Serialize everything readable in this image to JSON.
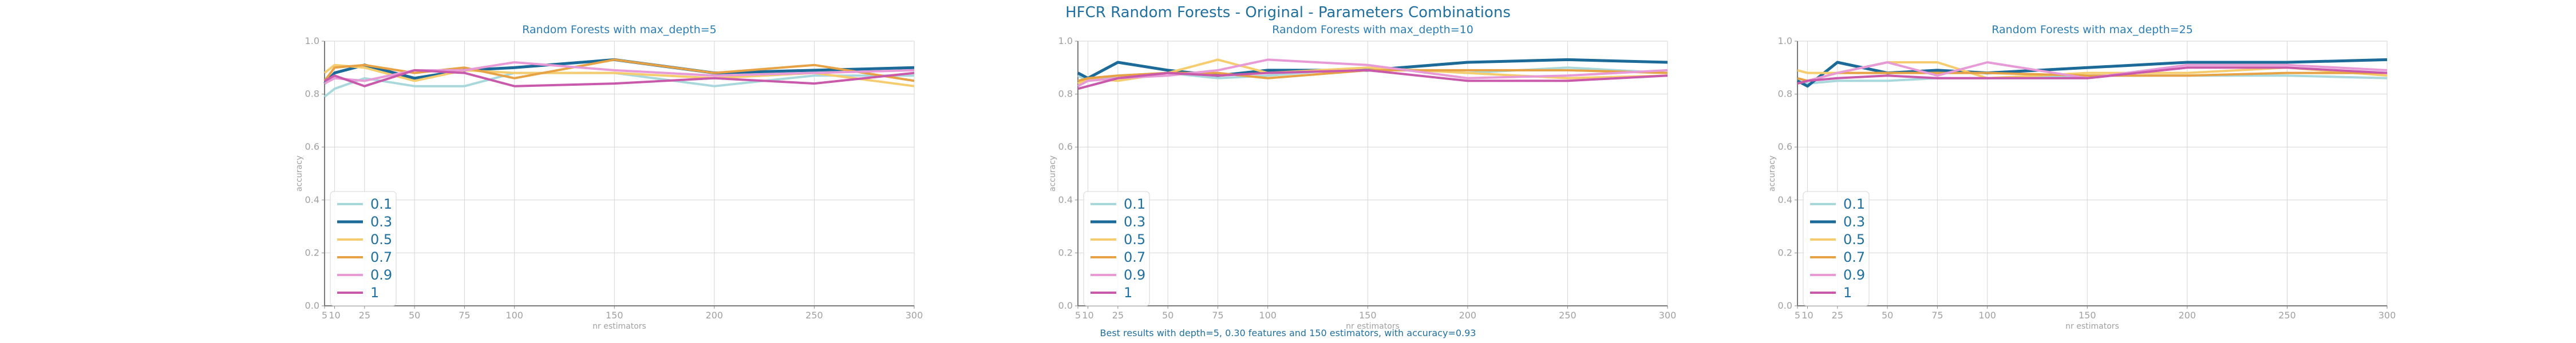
{
  "figure": {
    "title": "HFCR Random Forests - Original - Parameters Combinations",
    "footer": "Best results with depth=5, 0.30 features and 150 estimators, with accuracy=0.93"
  },
  "colors": {
    "0.1": "#a8d8dc",
    "0.3": "#1b6a98",
    "0.5": "#f5cc6e",
    "0.7": "#e6a245",
    "0.9": "#e79ad6",
    "1": "#c95aab"
  },
  "chart_data": [
    {
      "type": "line",
      "title": "Random Forests with max_depth=5",
      "xlabel": "nr estimators",
      "ylabel": "accuracy",
      "x": [
        5,
        10,
        25,
        50,
        75,
        100,
        150,
        200,
        250,
        300
      ],
      "xticks": [
        "5",
        "10",
        "25",
        "50",
        "75",
        "100",
        "150",
        "200",
        "250",
        "300"
      ],
      "yticks": [
        "0.0",
        "0.2",
        "0.4",
        "0.6",
        "0.8",
        "1.0"
      ],
      "ylim": [
        0,
        1
      ],
      "xlim": [
        5,
        300
      ],
      "grid": true,
      "legend": "lower-left",
      "series": [
        {
          "name": "0.1",
          "values": [
            0.79,
            0.82,
            0.86,
            0.83,
            0.83,
            0.88,
            0.88,
            0.83,
            0.87,
            0.87
          ]
        },
        {
          "name": "0.3",
          "values": [
            0.84,
            0.88,
            0.91,
            0.86,
            0.89,
            0.9,
            0.93,
            0.88,
            0.89,
            0.9
          ]
        },
        {
          "name": "0.5",
          "values": [
            0.88,
            0.91,
            0.9,
            0.85,
            0.89,
            0.88,
            0.88,
            0.86,
            0.88,
            0.83
          ]
        },
        {
          "name": "0.7",
          "values": [
            0.85,
            0.9,
            0.91,
            0.88,
            0.9,
            0.86,
            0.93,
            0.88,
            0.91,
            0.85
          ]
        },
        {
          "name": "0.9",
          "values": [
            0.84,
            0.86,
            0.85,
            0.89,
            0.89,
            0.92,
            0.89,
            0.87,
            0.88,
            0.89
          ]
        },
        {
          "name": "1",
          "values": [
            0.85,
            0.87,
            0.83,
            0.89,
            0.88,
            0.83,
            0.84,
            0.86,
            0.84,
            0.88
          ]
        }
      ]
    },
    {
      "type": "line",
      "title": "Random Forests with max_depth=10",
      "xlabel": "nr estimators",
      "ylabel": "accuracy",
      "x": [
        5,
        10,
        25,
        50,
        75,
        100,
        150,
        200,
        250,
        300
      ],
      "xticks": [
        "5",
        "10",
        "25",
        "50",
        "75",
        "100",
        "150",
        "200",
        "250",
        "300"
      ],
      "yticks": [
        "0.0",
        "0.2",
        "0.4",
        "0.6",
        "0.8",
        "1.0"
      ],
      "ylim": [
        0,
        1
      ],
      "xlim": [
        5,
        300
      ],
      "grid": true,
      "legend": "lower-left",
      "series": [
        {
          "name": "0.1",
          "values": [
            0.87,
            0.85,
            0.87,
            0.88,
            0.86,
            0.87,
            0.9,
            0.88,
            0.9,
            0.88
          ]
        },
        {
          "name": "0.3",
          "values": [
            0.88,
            0.86,
            0.92,
            0.89,
            0.87,
            0.89,
            0.89,
            0.92,
            0.93,
            0.92
          ]
        },
        {
          "name": "0.5",
          "values": [
            0.84,
            0.86,
            0.85,
            0.88,
            0.93,
            0.88,
            0.9,
            0.88,
            0.86,
            0.87
          ]
        },
        {
          "name": "0.7",
          "values": [
            0.85,
            0.86,
            0.87,
            0.88,
            0.88,
            0.86,
            0.89,
            0.89,
            0.89,
            0.88
          ]
        },
        {
          "name": "0.9",
          "values": [
            0.83,
            0.85,
            0.86,
            0.87,
            0.89,
            0.93,
            0.91,
            0.86,
            0.87,
            0.89
          ]
        },
        {
          "name": "1",
          "values": [
            0.82,
            0.83,
            0.86,
            0.88,
            0.87,
            0.88,
            0.89,
            0.85,
            0.85,
            0.87
          ]
        }
      ]
    },
    {
      "type": "line",
      "title": "Random Forests with max_depth=25",
      "xlabel": "nr estimators",
      "ylabel": "accuracy",
      "x": [
        5,
        10,
        25,
        50,
        75,
        100,
        150,
        200,
        250,
        300
      ],
      "xticks": [
        "5",
        "10",
        "25",
        "50",
        "75",
        "100",
        "150",
        "200",
        "250",
        "300"
      ],
      "yticks": [
        "0.0",
        "0.2",
        "0.4",
        "0.6",
        "0.8",
        "1.0"
      ],
      "ylim": [
        0,
        1
      ],
      "xlim": [
        5,
        300
      ],
      "grid": true,
      "legend": "lower-left",
      "series": [
        {
          "name": "0.1",
          "values": [
            0.85,
            0.84,
            0.85,
            0.85,
            0.86,
            0.86,
            0.87,
            0.87,
            0.87,
            0.86
          ]
        },
        {
          "name": "0.3",
          "values": [
            0.85,
            0.83,
            0.92,
            0.88,
            0.89,
            0.88,
            0.9,
            0.92,
            0.92,
            0.93
          ]
        },
        {
          "name": "0.5",
          "values": [
            0.89,
            0.88,
            0.88,
            0.92,
            0.92,
            0.86,
            0.88,
            0.88,
            0.9,
            0.87
          ]
        },
        {
          "name": "0.7",
          "values": [
            0.86,
            0.85,
            0.88,
            0.88,
            0.88,
            0.88,
            0.87,
            0.87,
            0.88,
            0.88
          ]
        },
        {
          "name": "0.9",
          "values": [
            0.84,
            0.85,
            0.88,
            0.92,
            0.87,
            0.92,
            0.86,
            0.91,
            0.91,
            0.89
          ]
        },
        {
          "name": "1",
          "values": [
            0.84,
            0.85,
            0.86,
            0.87,
            0.86,
            0.86,
            0.86,
            0.9,
            0.9,
            0.88
          ]
        }
      ]
    }
  ]
}
